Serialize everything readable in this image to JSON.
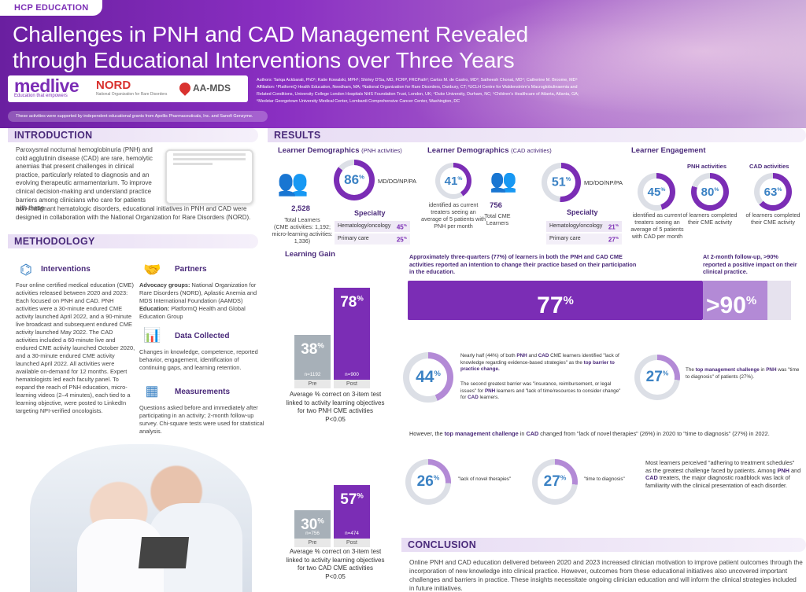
{
  "header": {
    "tag": "HCP EDUCATION",
    "title_line1": "Challenges in PNH and CAD Management Revealed",
    "title_line2": "through Educational Interventions over Three Years",
    "logos": {
      "medlive": "medlive",
      "medlive_tagline": "Education that empowers",
      "nord": "NORD",
      "nord_tagline": "National Organization for Rare Disorders",
      "aamds": "AA-MDS"
    },
    "authors": "Authors: Tariqa Ackbarali, PhD¹; Katie Kowalski, MPH¹; Shirley D'Sa, MD, FCRP, FRCPath²; Carlos M. de Castro, MD³; Satheesh Chonat, MD⁴; Catherine M. Broome, MD⁵",
    "affiliation1": "Affiliation: ¹PlatformQ Health Education, Needham, MA; ²National Organization for Rare Disorders, Danbury, CT; ³UCLH Centre for Waldenström's Macroglobulinaemia and",
    "affiliation2": "Related Conditions, University College London Hospitals NHS Foundation Trust, London, UK; ⁴Duke University, Durham, NC; ⁵Children's Healthcare of Atlanta, Atlanta, GA;",
    "affiliation3": "⁶Medstar Georgetown University Medical Center, Lombardi Comprehensive Cancer Center, Washington, DC",
    "support": "These activities were supported by independent educational grants from Apellis Pharmaceuticals, Inc. and Sanofi Genzyme."
  },
  "intro": {
    "heading": "INTRODUCTION",
    "text1": "Paroxysmal nocturnal hemoglobinuria (PNH) and cold agglutinin disease (CAD) are rare, hemolytic anemias that present challenges in clinical practice, particularly related to diagnosis and an evolving therapeutic armamentarium. To improve clinical decision-making and understand practice barriers among clinicians who care for patients with these",
    "text2": "non-malignant hematologic disorders, educational initiatives in PNH and CAD were designed in collaboration with the National Organization for Rare Disorders (NORD)."
  },
  "methodology": {
    "heading": "METHODOLOGY",
    "interventions": {
      "title": "Interventions",
      "text": "Four online certified medical education (CME) activities released between 2020 and 2023: Each focused on PNH and CAD. PNH activities were a 30-minute endured CME activity launched April 2022, and a 90-minute live broadcast and subsequent endured CME activity launched May 2022. The CAD activities included a 60-minute live and endured CME activity launched October 2020, and a 30-minute endured CME activity launched April 2022. All activities were available on-demand for 12 months. Expert hematologists led each faculty panel. To expand the reach of PNH education, micro-learning videos (2–4 minutes), each tied to a learning objective, were posted to LinkedIn targeting NPI-verified oncologists."
    },
    "partners": {
      "title": "Partners",
      "label1": "Advocacy groups:",
      "text1": " National Organization for Rare Disorders (NORD), Aplastic Anemia and MDS International Foundation (AAMDS)",
      "label2": "Education:",
      "text2": " PlatformQ Health and Global Education Group"
    },
    "data_collected": {
      "title": "Data Collected",
      "text": "Changes in knowledge, competence, reported behavior, engagement, identification of continuing gaps, and learning retention."
    },
    "measurements": {
      "title": "Measurements",
      "text": "Questions asked before and immediately after participating in an activity; 2-month follow-up survey. Chi-square tests were used for statistical analysis."
    }
  },
  "results": {
    "heading": "RESULTS",
    "demo_pnh": {
      "title": "Learner Demographics",
      "suffix": "(PNH activities)",
      "total": "2,528",
      "total_label": "Total Learners",
      "sub_label": "(CME activities: 1,192; micro-learning activities: 1,336)",
      "pct": 86,
      "pct_label": "MD/DO/NP/PA",
      "specialty_title": "Specialty",
      "specialty": [
        {
          "name": "Hematology/oncology",
          "value": "45"
        },
        {
          "name": "Primary care",
          "value": "25"
        }
      ]
    },
    "demo_cad": {
      "title": "Learner Demographics",
      "suffix": "(CAD activities)",
      "pct_treaters": 41,
      "treaters_label": "identified as current treaters seeing an average of 5 patients with PNH per month",
      "total": "756",
      "total_label": "Total CME Learners",
      "pct": 51,
      "pct_label": "MD/DO/NP/PA",
      "specialty_title": "Specialty",
      "specialty": [
        {
          "name": "Hematology/oncology",
          "value": "21"
        },
        {
          "name": "Primary care",
          "value": "27"
        }
      ]
    },
    "engagement": {
      "title": "Learner Engagement",
      "pnh_label": "PNH activities",
      "cad_label": "CAD activities",
      "pct_treaters": 45,
      "treaters_label": "identified as current treaters seeing an average of 5 patients with CAD per month",
      "pct_pnh": 80,
      "pnh_text": "of learners completed their CME activity",
      "pct_cad": 63,
      "cad_text": "of learners completed their CME activity"
    },
    "learning_gain": {
      "title": "Learning Gain"
    },
    "intention_text_a": "Approximately three-quarters (77%) of learners in both the ",
    "intention_text_b": "PNH",
    "intention_text_c": " and ",
    "intention_text_d": "CAD",
    "intention_text_e": " CME activities reported an intention to change their practice based on their participation in the education.",
    "followup_text": "At 2-month follow-up, >90% reported a positive impact on their clinical practice.",
    "big77": "77",
    "big90": ">90",
    "barrier_pct": "44",
    "barrier_text_a": "Nearly half (44%) of both ",
    "barrier_text_b": "PNH",
    "barrier_text_c": " and ",
    "barrier_text_d": "CAD",
    "barrier_text_e": " CME learners identified \"lack of knowledge regarding evidence-based strategies\" as the ",
    "barrier_text_f": "top barrier to practice change.",
    "barrier2_text_a": "The second greatest barrier was \"insurance, reimbursement, or legal issues\" for ",
    "barrier2_text_b": "PNH",
    "barrier2_text_c": " learners and \"lack of time/resources to consider change\" for ",
    "barrier2_text_d": "CAD",
    "barrier2_text_e": " learners.",
    "pnh_challenge_pct": "27",
    "pnh_challenge_a": "The ",
    "pnh_challenge_b": "top management challenge",
    "pnh_challenge_c": " in ",
    "pnh_challenge_d": "PNH",
    "pnh_challenge_e": " was \"time to diagnosis\" of patients (27%).",
    "cad_change_a": "However, the ",
    "cad_change_b": "top management challenge",
    "cad_change_c": " in ",
    "cad_change_d": "CAD",
    "cad_change_e": " changed from \"lack of novel therapies\" (26%) in 2020 to \"time to diagnosis\" (27%) in 2022.",
    "cad_pct1": "26",
    "cad_lbl1": "\"lack of novel therapies\"",
    "cad_pct2": "27",
    "cad_lbl2": "\"time to diagnosis\"",
    "adherence_a": "Most learners perceived \"adhering to treatment schedules\" as the greatest challenge faced by patients. Among ",
    "adherence_b": "PNH",
    "adherence_c": " and ",
    "adherence_d": "CAD",
    "adherence_e": " treaters, the major diagnostic roadblock was lack of familiarity with the clinical presentation of each disorder."
  },
  "conclusion": {
    "heading": "CONCLUSION",
    "text": "Online PNH and CAD education delivered between 2020 and 2023 increased clinician motivation to improve patient outcomes through the incorporation of new knowledge into clinical practice. However, outcomes from these educational initiatives also uncovered important challenges and barriers in practice. These insights necessitate ongoing clinician education and will inform the clinical strategies included in future initiatives."
  },
  "colors": {
    "purple": "#7b2db5",
    "light_purple": "#b38ad6",
    "gray_bar": "#a7b0b8",
    "blue": "#3b82c4"
  },
  "chart_data": [
    {
      "type": "bar",
      "categories": [
        "Pre",
        "Post"
      ],
      "values": [
        38,
        78
      ],
      "n_labels": [
        "n=1192",
        "n=900"
      ],
      "ylim": [
        0,
        100
      ],
      "caption": "Average % correct on 3-item test linked to activity learning objectives for two PNH CME activities",
      "pvalue": "P<0.05"
    },
    {
      "type": "bar",
      "categories": [
        "Pre",
        "Post"
      ],
      "values": [
        30,
        57
      ],
      "n_labels": [
        "n=756",
        "n=474"
      ],
      "ylim": [
        0,
        100
      ],
      "caption": "Average % correct on 3-item test linked to activity learning objectives for two CAD CME activities",
      "pvalue": "P<0.05"
    }
  ]
}
